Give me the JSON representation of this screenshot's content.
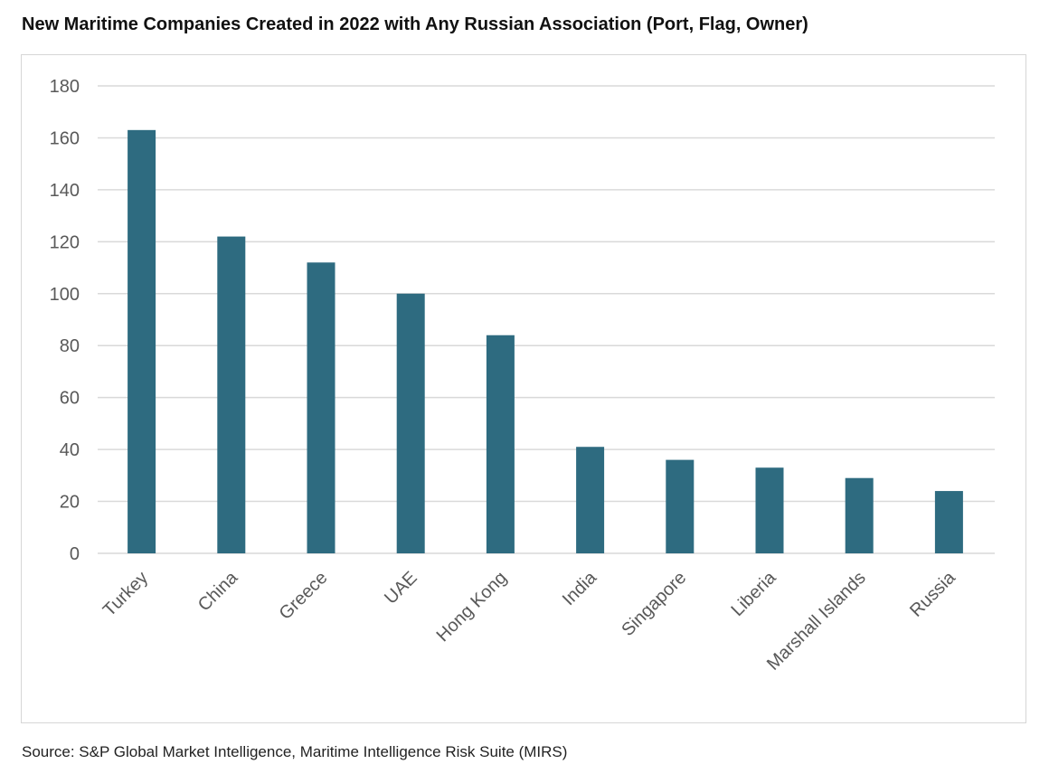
{
  "chart_data": {
    "type": "bar",
    "title": "New Maritime Companies Created in 2022 with Any Russian Association (Port, Flag, Owner)",
    "categories": [
      "Turkey",
      "China",
      "Greece",
      "UAE",
      "Hong Kong",
      "India",
      "Singapore",
      "Liberia",
      "Marshall Islands",
      "Russia"
    ],
    "values": [
      163,
      122,
      112,
      100,
      84,
      41,
      36,
      33,
      29,
      24
    ],
    "xlabel": "",
    "ylabel": "",
    "ylim": [
      0,
      180
    ],
    "yticks": [
      0,
      20,
      40,
      60,
      80,
      100,
      120,
      140,
      160,
      180
    ],
    "grid": true,
    "bar_color": "#2E6B80",
    "source": "Source: S&P Global Market Intelligence, Maritime Intelligence Risk Suite (MIRS)"
  }
}
